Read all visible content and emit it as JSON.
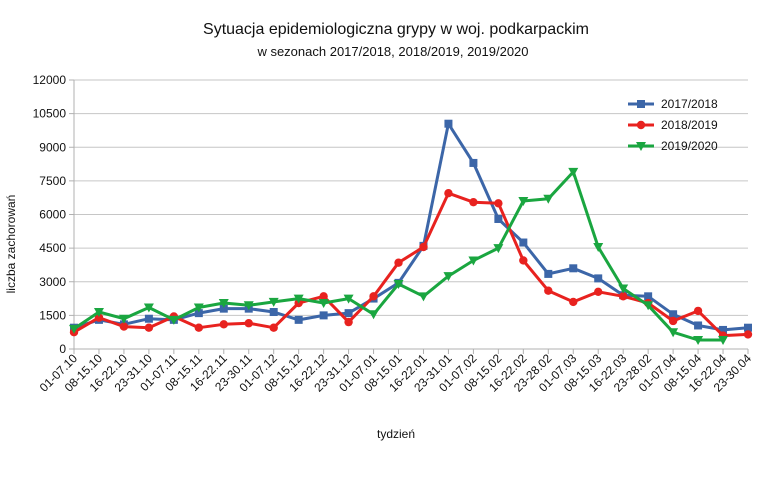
{
  "chart_data": {
    "type": "line",
    "title": "Sytuacja epidemiologiczna grypy w woj. podkarpackim",
    "subtitle": "w sezonach 2017/2018, 2018/2019, 2019/2020",
    "xlabel": "tydzień",
    "ylabel": "liczba zachorowań",
    "ylim": [
      0,
      12000
    ],
    "yticks": [
      0,
      1500,
      3000,
      4500,
      6000,
      7500,
      9000,
      10500,
      12000
    ],
    "grid": "horizontal",
    "legend_position": "top-right",
    "categories": [
      "01-07.10",
      "08-15.10",
      "16-22.10",
      "23-31.10",
      "01-07.11",
      "08-15.11",
      "16-22.11",
      "23-30.11",
      "01-07.12",
      "08-15.12",
      "16-22.12",
      "23-31.12",
      "01-07.01",
      "08-15.01",
      "16-22.01",
      "23-31.01",
      "01-07.02",
      "08-15.02",
      "16-22.02",
      "23-28.02",
      "01-07.03",
      "08-15.03",
      "16-22.03",
      "23-28.02",
      "01-07.04",
      "08-15.04",
      "16-22.04",
      "23-30.04"
    ],
    "series": [
      {
        "name": "2017/2018",
        "color": "#3c66a8",
        "marker": "square",
        "values": [
          950,
          1300,
          1100,
          1350,
          1300,
          1600,
          1800,
          1800,
          1650,
          1300,
          1500,
          1600,
          2250,
          2950,
          4600,
          10050,
          8300,
          5800,
          4750,
          3350,
          3600,
          3150,
          2400,
          2350,
          1550,
          1050,
          850,
          950
        ]
      },
      {
        "name": "2018/2019",
        "color": "#e8221f",
        "marker": "circle",
        "values": [
          750,
          1400,
          1000,
          950,
          1450,
          950,
          1100,
          1150,
          950,
          2050,
          2350,
          1200,
          2350,
          3850,
          4550,
          6950,
          6550,
          6500,
          3950,
          2600,
          2100,
          2550,
          2350,
          2050,
          1250,
          1700,
          600,
          650
        ]
      },
      {
        "name": "2019/2020",
        "color": "#1aa640",
        "marker": "triangle-down",
        "values": [
          900,
          1650,
          1350,
          1850,
          1300,
          1850,
          2050,
          1950,
          2100,
          2250,
          2050,
          2250,
          1550,
          2900,
          2350,
          3250,
          3950,
          4500,
          6600,
          6700,
          7900,
          4550,
          2700,
          1950,
          750,
          400,
          400,
          null
        ]
      }
    ]
  }
}
